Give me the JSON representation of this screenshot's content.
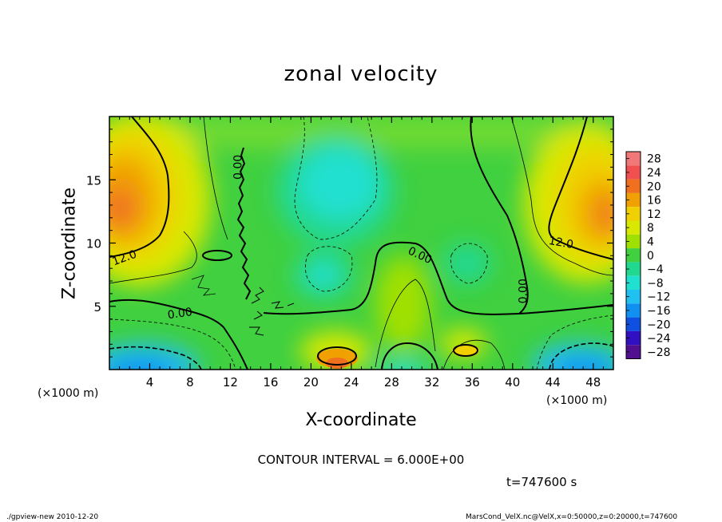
{
  "chart_data": {
    "type": "heatmap",
    "title": "zonal velocity",
    "xlabel": "X-coordinate",
    "ylabel": "Z-coordinate",
    "x_unit_label": "(×1000 m)",
    "xlim": [
      0,
      50
    ],
    "ylim": [
      0,
      20
    ],
    "x_ticks": [
      4,
      8,
      12,
      16,
      20,
      24,
      28,
      32,
      36,
      40,
      44,
      48
    ],
    "y_ticks": [
      5,
      10,
      15
    ],
    "colorbar_levels": [
      28,
      24,
      20,
      16,
      12,
      8,
      4,
      0,
      -4,
      -8,
      -12,
      -16,
      -20,
      -24,
      -28
    ],
    "colorbar_colors": [
      "#f07878",
      "#f05050",
      "#f07020",
      "#f0a000",
      "#f0d000",
      "#d8e800",
      "#a0e000",
      "#40d040",
      "#20d890",
      "#20e0d0",
      "#20c0f0",
      "#1090f0",
      "#1050e0",
      "#3010c0",
      "#501090"
    ],
    "contour_labels": [
      {
        "text": "12.0",
        "x": 1.5,
        "y": 8.8,
        "angle": -20
      },
      {
        "text": "0.00",
        "x": 7.0,
        "y": 4.4,
        "angle": -8
      },
      {
        "text": "0.00",
        "x": 12.8,
        "y": 16.0,
        "angle": -90
      },
      {
        "text": "0.00",
        "x": 30.8,
        "y": 9.0,
        "angle": 25
      },
      {
        "text": "0.00",
        "x": 41.1,
        "y": 6.2,
        "angle": -90
      },
      {
        "text": "12.0",
        "x": 44.8,
        "y": 10.0,
        "angle": 10
      }
    ],
    "contour_interval": "CONTOUR INTERVAL = 6.000E+00",
    "time": "t=747600 s"
  },
  "footer": {
    "left": "./gpview-new  2010-12-20",
    "right": "MarsCond_VelX.nc@VelX,x=0:50000,z=0:20000,t=747600"
  },
  "axes": {
    "x_unit_left": "(×1000 m)",
    "x_unit_right": "(×1000 m)"
  }
}
